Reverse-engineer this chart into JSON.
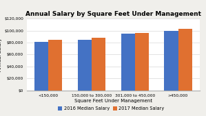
{
  "title": "Annual Salary by Square Feet Under Management",
  "xlabel": "Square Feet Under Management",
  "ylabel": "Annual Salary",
  "categories": [
    "<150,000",
    "150,000 to 300,000",
    "301,000 to 450,000",
    ">450,000"
  ],
  "series": [
    {
      "label": "2016 Median Salary",
      "values": [
        81000,
        85000,
        95000,
        99000
      ],
      "color": "#4472c4"
    },
    {
      "label": "2017 Median Salary",
      "values": [
        85000,
        88000,
        96000,
        103000
      ],
      "color": "#e07030"
    }
  ],
  "ylim": [
    0,
    120000
  ],
  "yticks": [
    0,
    20000,
    40000,
    60000,
    80000,
    100000,
    120000
  ],
  "ytick_labels": [
    "$0",
    "$20,000",
    "$40,000",
    "$60,000",
    "$80,000",
    "$100,000",
    "$120,000"
  ],
  "background_color": "#f0efeb",
  "plot_background_color": "#ffffff",
  "grid_color": "#d8d8d8",
  "bar_width": 0.32,
  "title_fontsize": 6.5,
  "axis_fontsize": 5.0,
  "tick_fontsize": 4.2,
  "legend_fontsize": 4.8
}
